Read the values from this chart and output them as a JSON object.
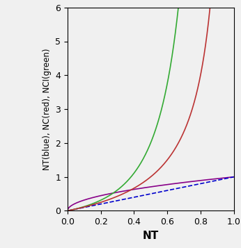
{
  "xlabel": "NT",
  "ylabel": "NT(blue), NC(red), NCI(green)",
  "xlim": [
    0,
    1
  ],
  "ylim": [
    0,
    6
  ],
  "xticks": [
    0,
    0.2,
    0.4,
    0.6,
    0.8,
    1
  ],
  "yticks": [
    0,
    1,
    2,
    3,
    4,
    5,
    6
  ],
  "line_blue_color": "#0000cc",
  "line_red_color": "#bb3333",
  "line_green_color": "#33aa33",
  "line_purple_color": "#880088",
  "line_width": 1.2,
  "background_color": "#f0f0f0",
  "xlabel_fontsize": 11,
  "ylabel_fontsize": 8.5,
  "tick_fontsize": 9,
  "xlabel_fontweight": "bold"
}
